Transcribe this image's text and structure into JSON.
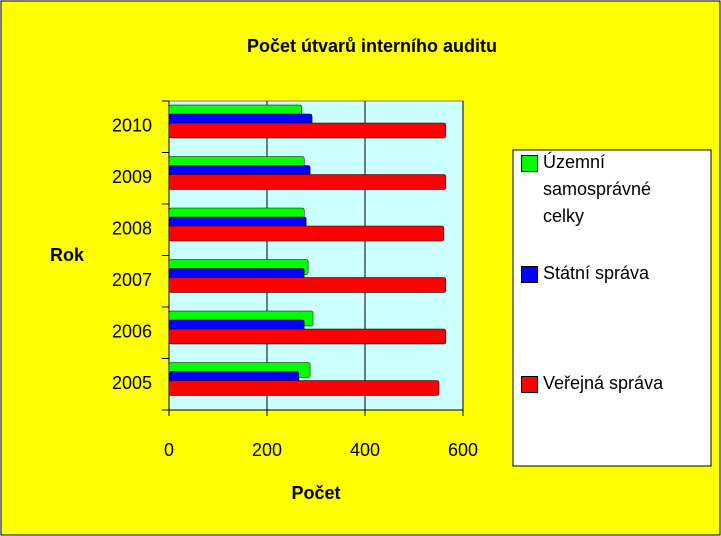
{
  "chart_data": {
    "type": "bar",
    "orientation": "horizontal",
    "title": "Počet útvarů interního auditu",
    "xlabel": "Počet",
    "ylabel": "Rok",
    "categories": [
      "2005",
      "2006",
      "2007",
      "2008",
      "2009",
      "2010"
    ],
    "series": [
      {
        "name": "Územní samosprávné celky",
        "color": "#00ff00",
        "values": [
          288,
          294,
          284,
          276,
          276,
          271
        ]
      },
      {
        "name": "Státní správa",
        "color": "#0000ff",
        "values": [
          265,
          276,
          276,
          280,
          288,
          292
        ]
      },
      {
        "name": "Veřejná správa",
        "color": "#ff0000",
        "values": [
          551,
          565,
          565,
          561,
          565,
          565
        ]
      }
    ],
    "xlim": [
      0,
      600
    ],
    "xticks": [
      0,
      200,
      400,
      600
    ],
    "grid": true,
    "legend": "right"
  }
}
